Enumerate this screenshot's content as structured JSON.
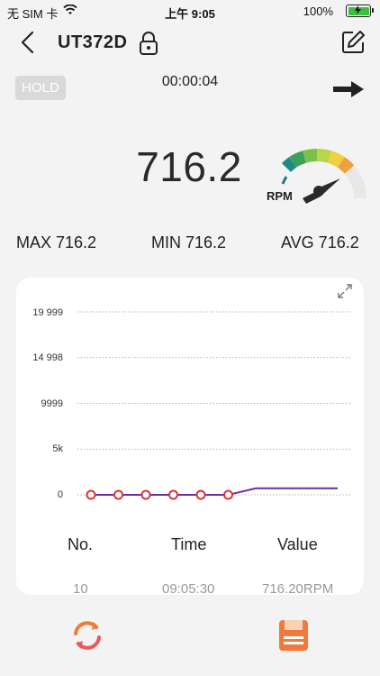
{
  "status_bar": {
    "carrier": "无 SIM 卡",
    "time": "上午 9:05",
    "battery": "100%"
  },
  "header": {
    "title": "UT372D"
  },
  "hold_label": "HOLD",
  "timer": "00:00:04",
  "reading": {
    "value": "716.2",
    "unit": "RPM"
  },
  "stats": {
    "max": "MAX 716.2",
    "min": "MIN 716.2",
    "avg": "AVG 716.2"
  },
  "chart_data": {
    "type": "line",
    "y_ticks": [
      "19 999",
      "14 998",
      "9999",
      "5k",
      "0"
    ],
    "ylim": [
      0,
      19999
    ],
    "grid": true,
    "series": [
      {
        "color": "#6a2fa0",
        "values": [
          0,
          0,
          0,
          0,
          0,
          0,
          716.2,
          716.2,
          716.2,
          716.2
        ],
        "markers_on_first": 6,
        "marker_color": "#e03030"
      }
    ]
  },
  "table": {
    "headers": [
      "No.",
      "Time",
      "Value"
    ],
    "rows": [
      [
        "10",
        "09:05:30",
        "716.20RPM"
      ]
    ]
  },
  "icons": {
    "back": "chevron-left-icon",
    "lock": "lock-icon",
    "edit": "edit-icon",
    "export": "arrow-right-icon",
    "expand": "expand-icon",
    "refresh": "refresh-icon",
    "save": "save-icon"
  },
  "colors": {
    "accent_orange": "#f07a3a",
    "line": "#6a2fa0",
    "marker": "#e03030"
  }
}
